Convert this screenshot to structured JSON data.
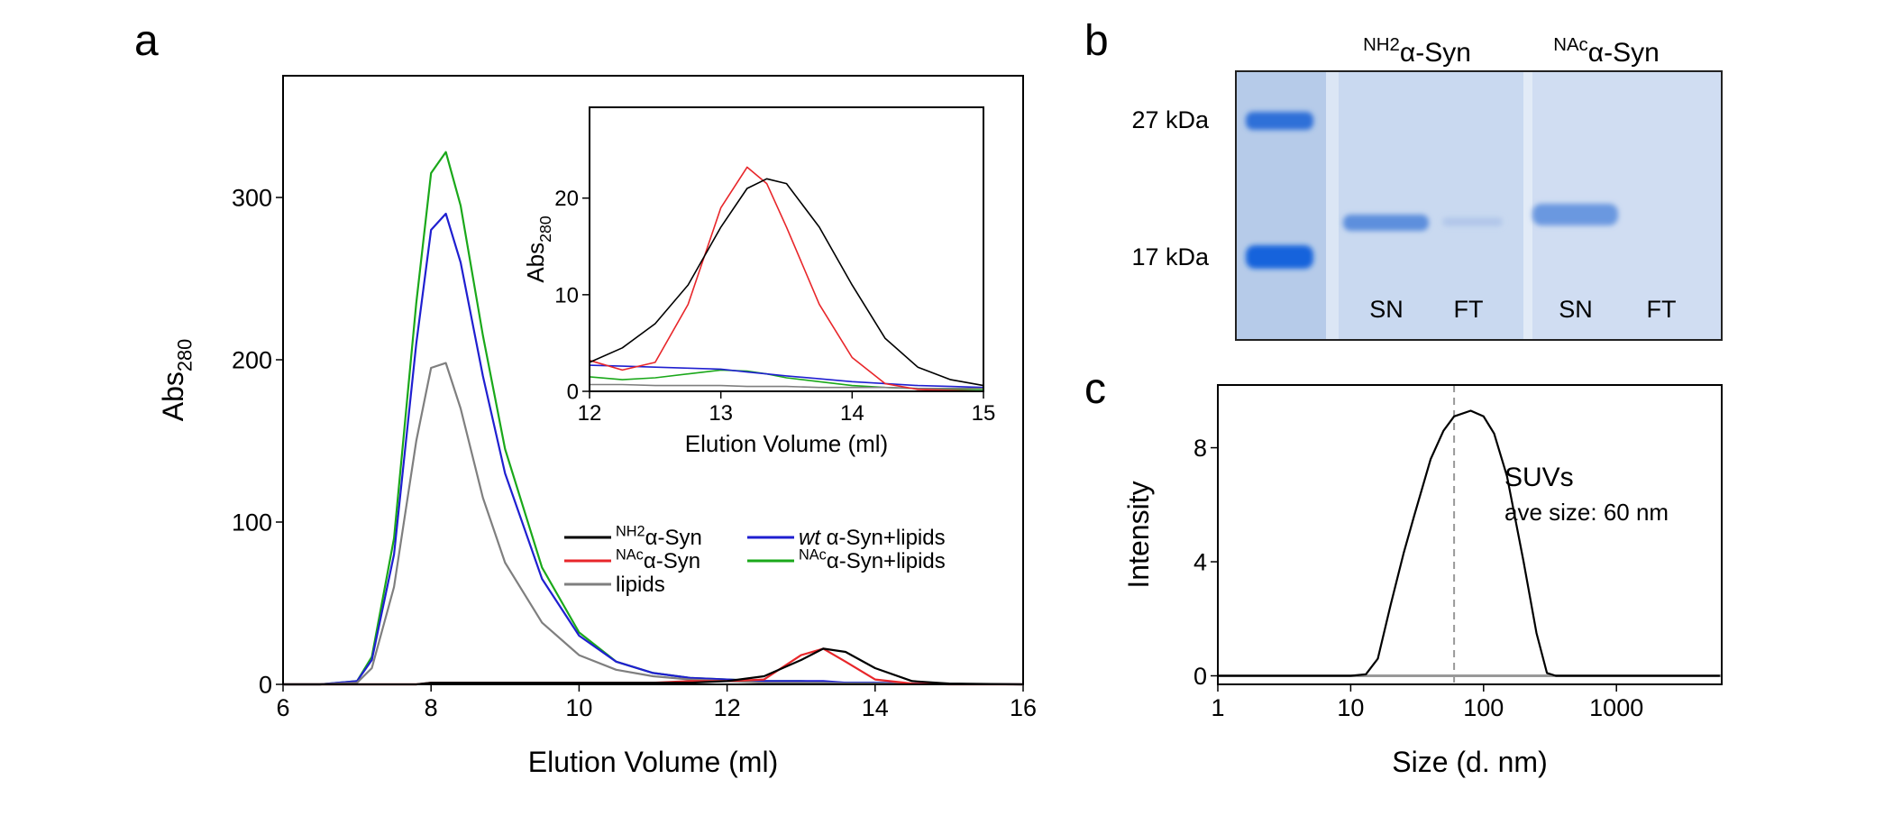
{
  "chart_data": [
    {
      "type": "line",
      "panel_label": "a",
      "x_label": "Elution Volume (ml)",
      "y_label": [
        {
          "text": "Abs"
        },
        {
          "text": "280",
          "style": "sub"
        }
      ],
      "x": [
        6,
        6.5,
        7,
        7.2,
        7.5,
        7.8,
        8,
        8.2,
        8.4,
        8.7,
        9,
        9.5,
        10,
        10.5,
        11,
        11.5,
        12,
        12.5,
        13,
        13.3,
        13.6,
        14,
        14.5,
        15,
        16
      ],
      "xlim": [
        6,
        16
      ],
      "xticks": [
        6,
        8,
        10,
        12,
        14,
        16
      ],
      "ylim": [
        0,
        375
      ],
      "yticks": [
        0,
        100,
        200,
        300
      ],
      "series": [
        {
          "name": [
            {
              "text": "NH2",
              "style": "sup"
            },
            {
              "text": "α-Syn"
            }
          ],
          "color": "#000000",
          "values": [
            0,
            0,
            0,
            0,
            0,
            0,
            1,
            1,
            1,
            1,
            1,
            1,
            1,
            1,
            1,
            1,
            2,
            5,
            15,
            22,
            20,
            10,
            2,
            0.5,
            0
          ]
        },
        {
          "name": [
            {
              "text": "NAc",
              "style": "sup"
            },
            {
              "text": "α-Syn"
            }
          ],
          "color": "#e8262a",
          "values": [
            0,
            0,
            0,
            0,
            0,
            0,
            1,
            1,
            1,
            1,
            1,
            1,
            1,
            1,
            1,
            2,
            2,
            3,
            18,
            22,
            14,
            3,
            0.5,
            0,
            0
          ]
        },
        {
          "name": [
            {
              "text": "lipids"
            }
          ],
          "color": "#7f7f7f",
          "values": [
            0,
            0,
            1,
            10,
            60,
            150,
            195,
            198,
            170,
            115,
            75,
            38,
            18,
            9,
            5,
            3,
            2,
            1,
            1,
            1,
            0.5,
            0.5,
            0.3,
            0.2,
            0
          ]
        },
        {
          "name": [
            {
              "text": "wt",
              "style": "italic"
            },
            {
              "text": " α-Syn+lipids"
            }
          ],
          "color": "#1f1fd0",
          "values": [
            0,
            0,
            2,
            15,
            80,
            210,
            280,
            290,
            260,
            190,
            130,
            65,
            30,
            14,
            7,
            4,
            3,
            2,
            2,
            2,
            1,
            1,
            0.5,
            0.3,
            0
          ]
        },
        {
          "name": [
            {
              "text": "NAc",
              "style": "sup"
            },
            {
              "text": "α-Syn+lipids"
            }
          ],
          "color": "#1aa81a",
          "values": [
            0,
            0,
            2,
            17,
            90,
            235,
            315,
            328,
            295,
            215,
            145,
            72,
            32,
            14,
            7,
            4,
            3,
            2,
            2,
            1.5,
            1,
            1,
            0.5,
            0.3,
            0
          ]
        }
      ],
      "legend": {
        "columns": 2,
        "rows": 3
      }
    },
    {
      "type": "line",
      "x_label": "Elution Volume (ml)",
      "y_label": [
        {
          "text": "Abs"
        },
        {
          "text": "280",
          "style": "sub"
        }
      ],
      "x": [
        12,
        12.25,
        12.5,
        12.75,
        13,
        13.2,
        13.35,
        13.5,
        13.75,
        14,
        14.25,
        14.5,
        14.75,
        15
      ],
      "xlim": [
        12,
        15
      ],
      "xticks": [
        12,
        13,
        14,
        15
      ],
      "ylim": [
        0,
        29.4
      ],
      "yticks": [
        0,
        10,
        20
      ],
      "series": [
        {
          "color": "#000000",
          "values": [
            3,
            4.5,
            7,
            11,
            17,
            21,
            22,
            21.5,
            17,
            11,
            5.5,
            2.5,
            1.2,
            0.6
          ]
        },
        {
          "color": "#e8262a",
          "values": [
            3.2,
            2.2,
            3,
            9,
            19,
            23.2,
            21.5,
            17,
            9,
            3.5,
            0.8,
            0.2,
            0.1,
            0
          ]
        },
        {
          "color": "#7f7f7f",
          "values": [
            0.7,
            0.7,
            0.6,
            0.6,
            0.6,
            0.5,
            0.5,
            0.5,
            0.4,
            0.4,
            0.4,
            0.3,
            0.3,
            0.3
          ]
        },
        {
          "color": "#1f1fd0",
          "values": [
            2.7,
            2.6,
            2.5,
            2.4,
            2.3,
            2.0,
            1.8,
            1.6,
            1.3,
            1.0,
            0.8,
            0.6,
            0.5,
            0.4
          ]
        },
        {
          "color": "#1aa81a",
          "values": [
            1.5,
            1.2,
            1.4,
            1.8,
            2.2,
            2.1,
            1.8,
            1.4,
            1.0,
            0.6,
            0.4,
            0.3,
            0.2,
            0.2
          ]
        }
      ]
    },
    {
      "type": "line",
      "panel_label": "c",
      "x_label": "Size (d. nm)",
      "y_label": [
        {
          "text": "Intensity"
        }
      ],
      "xscale": "log",
      "x": [
        1,
        5,
        10,
        13,
        16,
        20,
        25,
        30,
        40,
        50,
        60,
        80,
        100,
        120,
        150,
        200,
        250,
        300,
        350,
        1000,
        6000
      ],
      "xlim": [
        1,
        6200
      ],
      "xticks": [
        1,
        10,
        100,
        1000
      ],
      "ylim": [
        -0.3,
        10.2
      ],
      "yticks": [
        0,
        4,
        8
      ],
      "series": [
        {
          "color": "#000000",
          "values": [
            0,
            0,
            0,
            0.05,
            0.6,
            2.5,
            4.3,
            5.6,
            7.6,
            8.6,
            9.1,
            9.3,
            9.1,
            8.5,
            7.0,
            4.0,
            1.5,
            0.1,
            0,
            0,
            0
          ]
        }
      ],
      "marker_line": {
        "x": 60,
        "color": "#999999"
      },
      "annotations": [
        "SUVs",
        "ave size: 60 nm"
      ]
    }
  ],
  "gel": {
    "panel_label": "b",
    "lane_headers": [
      [
        {
          "text": "NH2",
          "style": "sup"
        },
        {
          "text": "α-Syn"
        }
      ],
      [
        {
          "text": "NAc",
          "style": "sup"
        },
        {
          "text": "α-Syn"
        }
      ]
    ],
    "marker_labels": [
      "27 kDa",
      "17 kDa"
    ],
    "lane_labels": [
      "SN",
      "FT",
      "SN",
      "FT"
    ]
  }
}
